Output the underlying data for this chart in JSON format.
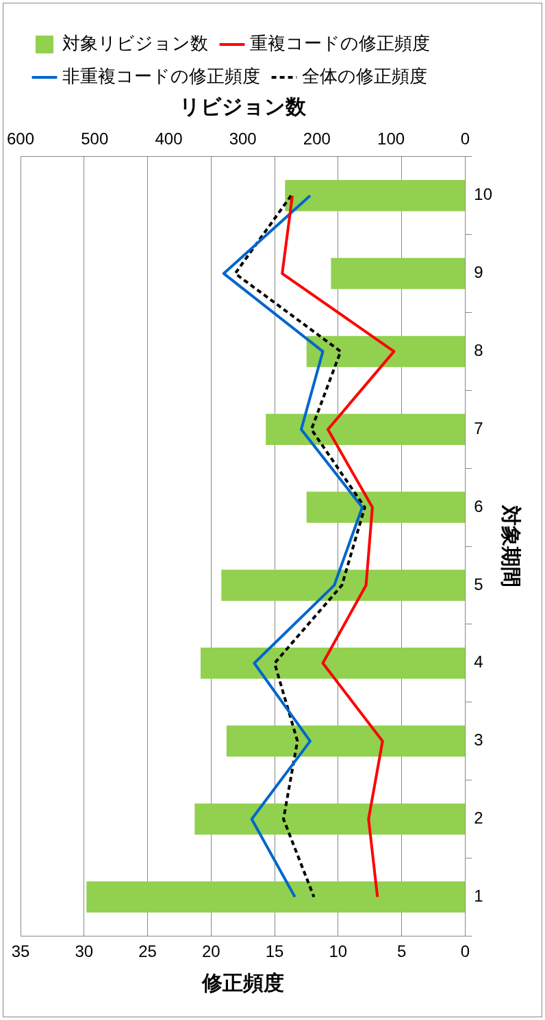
{
  "chart_data": {
    "type": "bar",
    "orientation": "horizontal",
    "xlabel": "修正頻度",
    "x2label": "リビジョン数",
    "ylabel": "対象期間",
    "categories": [
      "10",
      "9",
      "8",
      "7",
      "6",
      "5",
      "4",
      "3",
      "2",
      "1"
    ],
    "series": [
      {
        "name": "対象リビジョン数",
        "axis": "x2",
        "color": "#92d050",
        "values": [
          243,
          181,
          214,
          269,
          214,
          329,
          357,
          322,
          365,
          511
        ]
      },
      {
        "name": "重複コードの修正頻度",
        "type": "line",
        "color": "#ff0000",
        "values": [
          13.6,
          14.4,
          5.6,
          10.8,
          7.3,
          7.8,
          11.2,
          6.5,
          7.6,
          6.9
        ]
      },
      {
        "name": "非重複コードの修正頻度",
        "type": "line",
        "color": "#0066cc",
        "values": [
          12.2,
          19.0,
          11.2,
          12.9,
          8.1,
          10.3,
          16.6,
          12.2,
          16.8,
          13.4
        ]
      },
      {
        "name": "全体の修正頻度",
        "type": "line",
        "color": "#000000",
        "line_style": "dashed",
        "values": [
          13.7,
          18.1,
          9.8,
          12.1,
          7.9,
          9.7,
          15.0,
          13.2,
          14.3,
          11.9
        ]
      }
    ],
    "xlim": [
      35,
      0
    ],
    "xticks": [
      35,
      30,
      25,
      20,
      15,
      10,
      5,
      0
    ],
    "x2lim": [
      600,
      0
    ],
    "x2ticks": [
      600,
      500,
      400,
      300,
      200,
      100,
      0
    ],
    "grid": "x",
    "legend": "top",
    "marker": "none"
  }
}
